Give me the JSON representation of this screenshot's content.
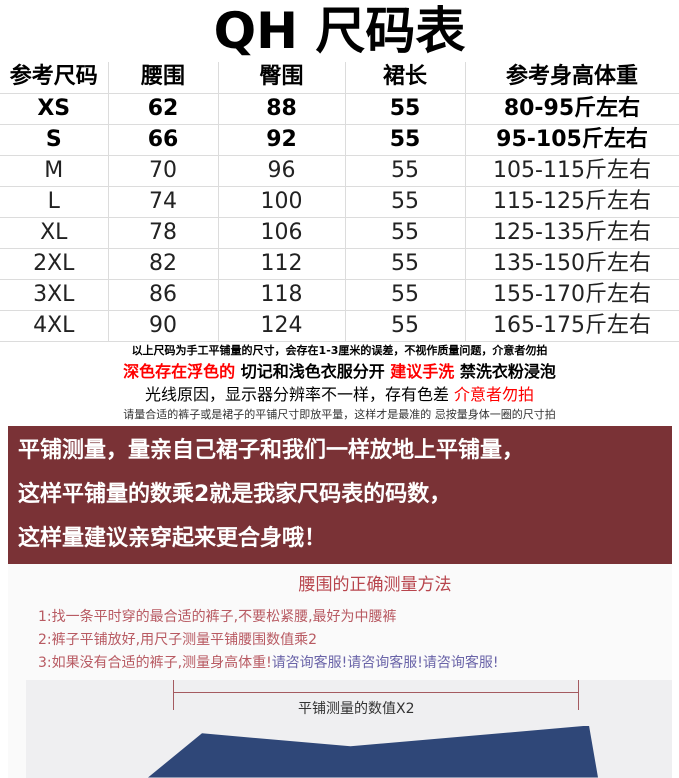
{
  "title": "QH  尺码表",
  "headers": [
    "参考尺码",
    "腰围",
    "臀围",
    "裙长",
    "参考身高体重"
  ],
  "rows": [
    [
      "XS",
      "62",
      "88",
      "55",
      "80-95斤左右"
    ],
    [
      "S",
      "66",
      "92",
      "55",
      "95-105斤左右"
    ],
    [
      "M",
      "70",
      "96",
      "55",
      "105-115斤左右"
    ],
    [
      "L",
      "74",
      "100",
      "55",
      "115-125斤左右"
    ],
    [
      "XL",
      "78",
      "106",
      "55",
      "125-135斤左右"
    ],
    [
      "2XL",
      "82",
      "112",
      "55",
      "135-150斤左右"
    ],
    [
      "3XL",
      "86",
      "118",
      "55",
      "155-170斤左右"
    ],
    [
      "4XL",
      "90",
      "124",
      "55",
      "165-175斤左右"
    ]
  ],
  "notes": {
    "n1": "以上尺码为手工平铺量的尺寸，会存在1-3厘米的误差，不视作质量问题，介意者勿拍",
    "n2a": "深色存在浮色的",
    "n2b": " 切记和浅色衣服分开 ",
    "n2c": "建议手洗",
    "n2d": " 禁洗衣粉浸泡",
    "n3a": "光线原因，显示器分辨率不一样，存有色差 ",
    "n3b": "介意者勿拍",
    "n4": "请量合适的裤子或是裙子的平铺尺寸即放平量，这样才是最准的 忌按量身体一圈的尺寸拍"
  },
  "banner": [
    "平铺测量，量亲自己裙子和我们一样放地上平铺量，",
    "这样平铺量的数乘2就是我家尺码表的码数，",
    "这样量建议亲穿起来更合身哦！"
  ],
  "photo": {
    "title": "腰围的正确测量方法",
    "step1": "1:找一条平时穿的最合适的裤子,不要松紧腰,最好为中腰裤",
    "step2": "2:裤子平铺放好,用尺子测量平铺腰围数值乘2",
    "step3a": "3:如果没有合适的裤子,测量身高体重!",
    "step3b": "请咨询客服!请咨询客服!请咨询客服!",
    "measure": "平铺测量的数值X2"
  },
  "colors": {
    "accent_red": "#ff0000",
    "banner": "#7a3236"
  }
}
